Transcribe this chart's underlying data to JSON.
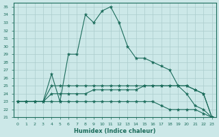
{
  "xlabel": "Humidex (Indice chaleur)",
  "xlim": [
    -0.5,
    23.5
  ],
  "ylim": [
    21,
    35.5
  ],
  "yticks": [
    21,
    22,
    23,
    24,
    25,
    26,
    27,
    28,
    29,
    30,
    31,
    32,
    33,
    34,
    35
  ],
  "xticks": [
    0,
    1,
    2,
    3,
    4,
    5,
    6,
    7,
    8,
    9,
    10,
    11,
    12,
    13,
    14,
    15,
    16,
    17,
    18,
    19,
    20,
    21,
    22,
    23
  ],
  "background_color": "#cce8e8",
  "line_color": "#1a6b5a",
  "grid_color": "#aacccc",
  "lines": [
    {
      "x": [
        0,
        1,
        2,
        3,
        4,
        5,
        6,
        7,
        8,
        9,
        10,
        11,
        12,
        13,
        14,
        15,
        16,
        17,
        18,
        19,
        20,
        21,
        22,
        23
      ],
      "y": [
        23,
        23,
        23,
        23,
        26.5,
        23,
        29,
        29,
        34,
        33,
        34.5,
        35,
        33,
        30,
        28.5,
        28.5,
        28,
        27.5,
        27,
        25,
        24,
        22.5,
        22,
        21
      ]
    },
    {
      "x": [
        0,
        1,
        2,
        3,
        4,
        5,
        6,
        7,
        8,
        9,
        10,
        11,
        12,
        13,
        14,
        15,
        16,
        17,
        18,
        19,
        20,
        21,
        22,
        23
      ],
      "y": [
        23,
        23,
        23,
        23,
        23,
        23,
        23,
        23,
        23,
        23,
        23,
        23,
        23,
        23,
        23,
        23,
        23,
        22.5,
        22,
        22,
        22,
        22,
        21.5,
        21
      ]
    },
    {
      "x": [
        0,
        1,
        2,
        3,
        4,
        5,
        6,
        7,
        8,
        9,
        10,
        11,
        12,
        13,
        14,
        15,
        16,
        17,
        18,
        19,
        20,
        21,
        22,
        23
      ],
      "y": [
        23,
        23,
        23,
        23,
        24,
        24,
        24,
        24,
        24,
        24.5,
        24.5,
        24.5,
        24.5,
        24.5,
        24.5,
        25,
        25,
        25,
        25,
        25,
        25,
        24.5,
        24,
        21
      ]
    },
    {
      "x": [
        0,
        1,
        2,
        3,
        4,
        5,
        6,
        7,
        8,
        9,
        10,
        11,
        12,
        13,
        14,
        15,
        16,
        17,
        18,
        19,
        20,
        21,
        22,
        23
      ],
      "y": [
        23,
        23,
        23,
        23,
        25,
        25,
        25,
        25,
        25,
        25,
        25,
        25,
        25,
        25,
        25,
        25,
        25,
        25,
        25,
        25,
        25,
        24.5,
        24,
        21
      ]
    }
  ]
}
